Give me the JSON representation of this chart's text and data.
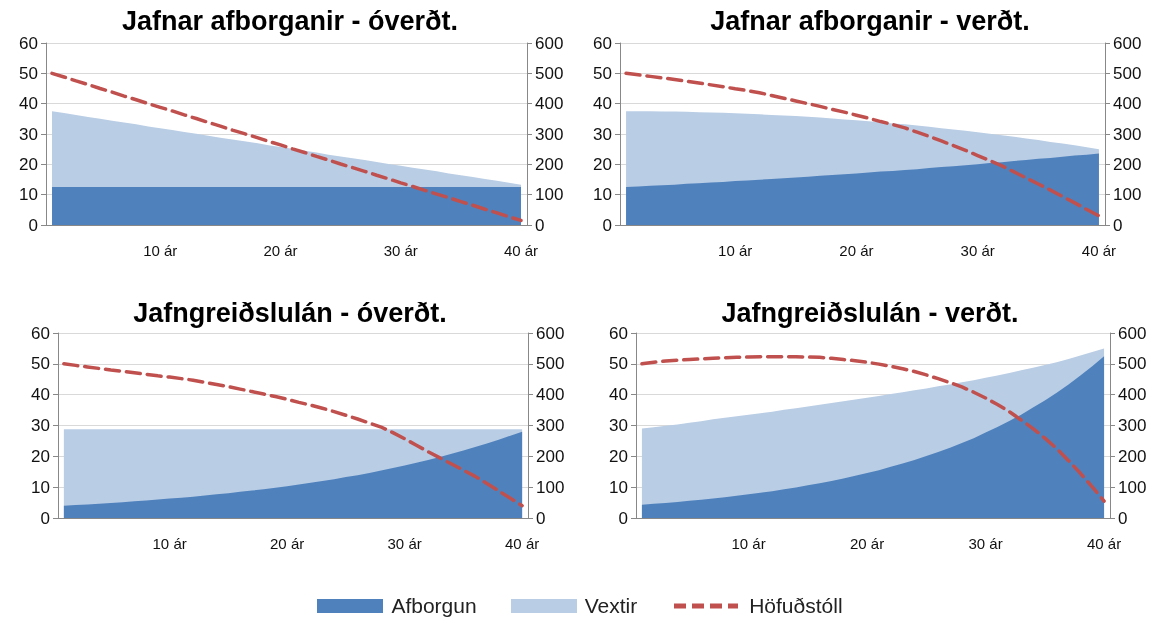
{
  "chart_data": [
    {
      "type": "area",
      "title": "Jafnar afborganir - óverðt.",
      "stacked": true,
      "legend": "bottom",
      "categories": [
        null,
        null,
        null,
        null,
        null,
        null,
        null,
        null,
        null,
        "10 ár",
        null,
        null,
        null,
        null,
        null,
        null,
        null,
        null,
        null,
        "20 ár",
        null,
        null,
        null,
        null,
        null,
        null,
        null,
        null,
        null,
        "30 ár",
        null,
        null,
        null,
        null,
        null,
        null,
        null,
        null,
        null,
        "40 ár"
      ],
      "ylim": [
        0,
        60
      ],
      "yticks": [
        0,
        10,
        20,
        30,
        40,
        50,
        60
      ],
      "y2lim": [
        0,
        600
      ],
      "y2ticks": [
        0,
        100,
        200,
        300,
        400,
        500,
        600
      ],
      "grid": "y",
      "series": [
        {
          "name": "Afborgun",
          "color": "#4f81bd",
          "values": [
            12.5,
            12.5,
            12.5,
            12.5,
            12.5,
            12.5,
            12.5,
            12.5,
            12.5,
            12.5,
            12.5,
            12.5,
            12.5,
            12.5,
            12.5,
            12.5,
            12.5,
            12.5,
            12.5,
            12.5,
            12.5,
            12.5,
            12.5,
            12.5,
            12.5,
            12.5,
            12.5,
            12.5,
            12.5,
            12.5,
            12.5,
            12.5,
            12.5,
            12.5,
            12.5,
            12.5,
            12.5,
            12.5,
            12.5,
            12.5
          ]
        },
        {
          "name": "Vextir",
          "color": "#b9cde5",
          "values": [
            25,
            24.4,
            23.8,
            23.1,
            22.5,
            21.9,
            21.3,
            20.7,
            20.0,
            19.4,
            18.8,
            18.2,
            17.6,
            16.9,
            16.3,
            15.7,
            15.1,
            14.5,
            13.8,
            13.2,
            12.6,
            12.0,
            11.4,
            10.7,
            10.1,
            9.5,
            8.9,
            8.3,
            7.6,
            7.0,
            6.4,
            5.8,
            5.2,
            4.5,
            3.9,
            3.3,
            2.7,
            2.1,
            1.4,
            0.8
          ]
        },
        {
          "name": "Höfuðstóll",
          "type": "line",
          "axis": "y2",
          "color": "#c0504d",
          "line_style": "dashed",
          "values": [
            500,
            488,
            475,
            463,
            450,
            438,
            425,
            413,
            400,
            388,
            376,
            363,
            351,
            338,
            326,
            313,
            301,
            289,
            276,
            264,
            251,
            239,
            226,
            214,
            201,
            189,
            177,
            164,
            152,
            139,
            127,
            114,
            102,
            90,
            77,
            65,
            52,
            40,
            27,
            15
          ]
        }
      ]
    },
    {
      "type": "area",
      "title": "Jafnar afborganir - verðt.",
      "stacked": true,
      "legend": "bottom",
      "categories": [
        null,
        null,
        null,
        null,
        null,
        null,
        null,
        null,
        null,
        "10 ár",
        null,
        null,
        null,
        null,
        null,
        null,
        null,
        null,
        null,
        "20 ár",
        null,
        null,
        null,
        null,
        null,
        null,
        null,
        null,
        null,
        "30 ár",
        null,
        null,
        null,
        null,
        null,
        null,
        null,
        null,
        null,
        "40 ár"
      ],
      "ylim": [
        0,
        60
      ],
      "yticks": [
        0,
        10,
        20,
        30,
        40,
        50,
        60
      ],
      "y2lim": [
        0,
        600
      ],
      "y2ticks": [
        0,
        100,
        200,
        300,
        400,
        500,
        600
      ],
      "grid": "y",
      "series": [
        {
          "name": "Afborgun",
          "color": "#4f81bd",
          "values": [
            12.5,
            12.7,
            12.9,
            13.1,
            13.3,
            13.6,
            13.8,
            14.0,
            14.2,
            14.5,
            14.7,
            14.9,
            15.2,
            15.4,
            15.7,
            15.9,
            16.2,
            16.5,
            16.7,
            17.0,
            17.3,
            17.6,
            17.8,
            18.1,
            18.4,
            18.8,
            19.1,
            19.4,
            19.7,
            20.0,
            20.4,
            20.7,
            21.1,
            21.4,
            21.8,
            22.1,
            22.5,
            22.9,
            23.2,
            23.6
          ]
        },
        {
          "name": "Vextir",
          "color": "#b9cde5",
          "values": [
            25.0,
            24.8,
            24.6,
            24.3,
            24.1,
            23.7,
            23.4,
            23.1,
            22.8,
            22.3,
            22.0,
            21.6,
            21.1,
            20.7,
            20.2,
            19.8,
            19.2,
            18.6,
            18.1,
            17.5,
            16.9,
            16.3,
            15.7,
            15.1,
            14.4,
            13.6,
            12.8,
            12.1,
            11.4,
            10.6,
            9.7,
            8.9,
            8.0,
            7.1,
            6.2,
            5.3,
            4.4,
            3.4,
            2.4,
            1.4
          ]
        },
        {
          "name": "Höfuðstóll",
          "type": "line",
          "axis": "y2",
          "color": "#c0504d",
          "line_style": "dashed",
          "values": [
            500,
            495,
            490,
            485,
            480,
            474,
            468,
            462,
            456,
            449,
            443,
            436,
            427,
            418,
            409,
            400,
            391,
            381,
            372,
            362,
            352,
            341,
            331,
            320,
            306,
            292,
            277,
            262,
            246,
            229,
            212,
            195,
            175,
            155,
            135,
            115,
            94,
            73,
            51,
            30
          ]
        }
      ]
    },
    {
      "type": "area",
      "title": "Jafngreiðslulán - óverðt.",
      "stacked": true,
      "legend": "bottom",
      "categories": [
        null,
        null,
        null,
        null,
        null,
        null,
        null,
        null,
        null,
        "10 ár",
        null,
        null,
        null,
        null,
        null,
        null,
        null,
        null,
        null,
        "20 ár",
        null,
        null,
        null,
        null,
        null,
        null,
        null,
        null,
        null,
        "30 ár",
        null,
        null,
        null,
        null,
        null,
        null,
        null,
        null,
        null,
        "40 ár"
      ],
      "ylim": [
        0,
        60
      ],
      "yticks": [
        0,
        10,
        20,
        30,
        40,
        50,
        60
      ],
      "y2lim": [
        0,
        600
      ],
      "y2ticks": [
        0,
        100,
        200,
        300,
        400,
        500,
        600
      ],
      "grid": "y",
      "series": [
        {
          "name": "Afborgun",
          "color": "#4f81bd",
          "values": [
            4.0,
            4.2,
            4.4,
            4.6,
            4.9,
            5.1,
            5.4,
            5.7,
            6.0,
            6.3,
            6.6,
            6.9,
            7.3,
            7.7,
            8.0,
            8.5,
            8.9,
            9.3,
            9.8,
            10.3,
            10.9,
            11.4,
            12.0,
            12.6,
            13.3,
            13.9,
            14.6,
            15.4,
            16.2,
            17.0,
            17.9,
            18.8,
            19.8,
            20.8,
            21.9,
            23.0,
            24.2,
            25.4,
            26.7,
            28.0
          ]
        },
        {
          "name": "Vextir",
          "color": "#b9cde5",
          "values": [
            24.8,
            24.6,
            24.4,
            24.2,
            23.9,
            23.7,
            23.4,
            23.1,
            22.8,
            22.5,
            22.2,
            21.9,
            21.5,
            21.1,
            20.8,
            20.3,
            19.9,
            19.5,
            19.0,
            18.5,
            17.9,
            17.4,
            16.8,
            16.2,
            15.5,
            14.9,
            14.2,
            13.4,
            12.6,
            11.8,
            10.9,
            10.0,
            9.0,
            8.0,
            6.9,
            5.8,
            4.6,
            3.4,
            2.1,
            0.8
          ]
        },
        {
          "name": "Höfuðstóll",
          "type": "line",
          "axis": "y2",
          "color": "#c0504d",
          "line_style": "dashed",
          "values": [
            500,
            495,
            490,
            485,
            480,
            476,
            471,
            466,
            461,
            457,
            452,
            447,
            440,
            433,
            426,
            418,
            410,
            402,
            394,
            385,
            375,
            366,
            356,
            345,
            333,
            321,
            308,
            295,
            277,
            257,
            236,
            215,
            195,
            175,
            155,
            135,
            112,
            88,
            64,
            40
          ]
        }
      ]
    },
    {
      "type": "area",
      "title": "Jafngreiðslulán - verðt.",
      "stacked": true,
      "legend": "bottom",
      "categories": [
        null,
        null,
        null,
        null,
        null,
        null,
        null,
        null,
        null,
        "10 ár",
        null,
        null,
        null,
        null,
        null,
        null,
        null,
        null,
        null,
        "20 ár",
        null,
        null,
        null,
        null,
        null,
        null,
        null,
        null,
        null,
        "30 ár",
        null,
        null,
        null,
        null,
        null,
        null,
        null,
        null,
        null,
        "40 ár"
      ],
      "ylim": [
        0,
        60
      ],
      "yticks": [
        0,
        10,
        20,
        30,
        40,
        50,
        60
      ],
      "y2lim": [
        0,
        600
      ],
      "y2ticks": [
        0,
        100,
        200,
        300,
        400,
        500,
        600
      ],
      "grid": "y",
      "series": [
        {
          "name": "Afborgun",
          "color": "#4f81bd",
          "values": [
            4.3,
            4.6,
            4.9,
            5.2,
            5.6,
            5.9,
            6.3,
            6.7,
            7.2,
            7.7,
            8.2,
            8.7,
            9.3,
            9.9,
            10.6,
            11.3,
            12.0,
            12.8,
            13.7,
            14.6,
            15.5,
            16.6,
            17.7,
            18.8,
            20.1,
            21.4,
            22.8,
            24.3,
            25.9,
            27.7,
            29.5,
            31.5,
            33.5,
            35.8,
            38.1,
            40.6,
            43.3,
            46.2,
            49.2,
            52.5
          ]
        },
        {
          "name": "Vextir",
          "color": "#b9cde5",
          "values": [
            24.7,
            24.8,
            25.0,
            25.1,
            25.3,
            25.5,
            25.7,
            25.8,
            25.8,
            25.8,
            25.8,
            25.8,
            25.8,
            25.7,
            25.6,
            25.4,
            25.3,
            25.1,
            24.7,
            24.4,
            24.1,
            23.6,
            23.1,
            22.6,
            21.9,
            21.3,
            20.5,
            19.7,
            18.8,
            17.8,
            16.7,
            15.5,
            14.4,
            12.9,
            11.5,
            9.9,
            8.3,
            6.5,
            4.6,
            2.5
          ]
        },
        {
          "name": "Höfuðstóll",
          "type": "line",
          "axis": "y2",
          "color": "#c0504d",
          "line_style": "dashed",
          "values": [
            500,
            505,
            509,
            512,
            514,
            516,
            518,
            520,
            521,
            522,
            523,
            523,
            523,
            523,
            522,
            521,
            518,
            514,
            510,
            505,
            499,
            492,
            484,
            475,
            464,
            452,
            439,
            425,
            408,
            389,
            368,
            345,
            318,
            290,
            259,
            225,
            186,
            145,
            101,
            55
          ]
        }
      ]
    }
  ]
}
